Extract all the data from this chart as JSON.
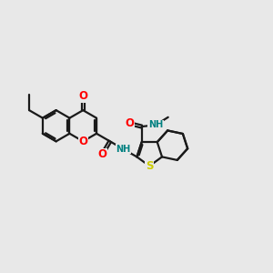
{
  "background_color": "#e8e8e8",
  "bond_color": "#1a1a1a",
  "line_width": 1.6,
  "figsize": [
    3.0,
    3.0
  ],
  "dpi": 100,
  "atom_colors": {
    "O": "#ff0000",
    "N": "#0000ff",
    "S": "#cccc00",
    "NH": "#008080",
    "C": "#1a1a1a"
  },
  "font_size": 7.0,
  "bl": 0.58
}
